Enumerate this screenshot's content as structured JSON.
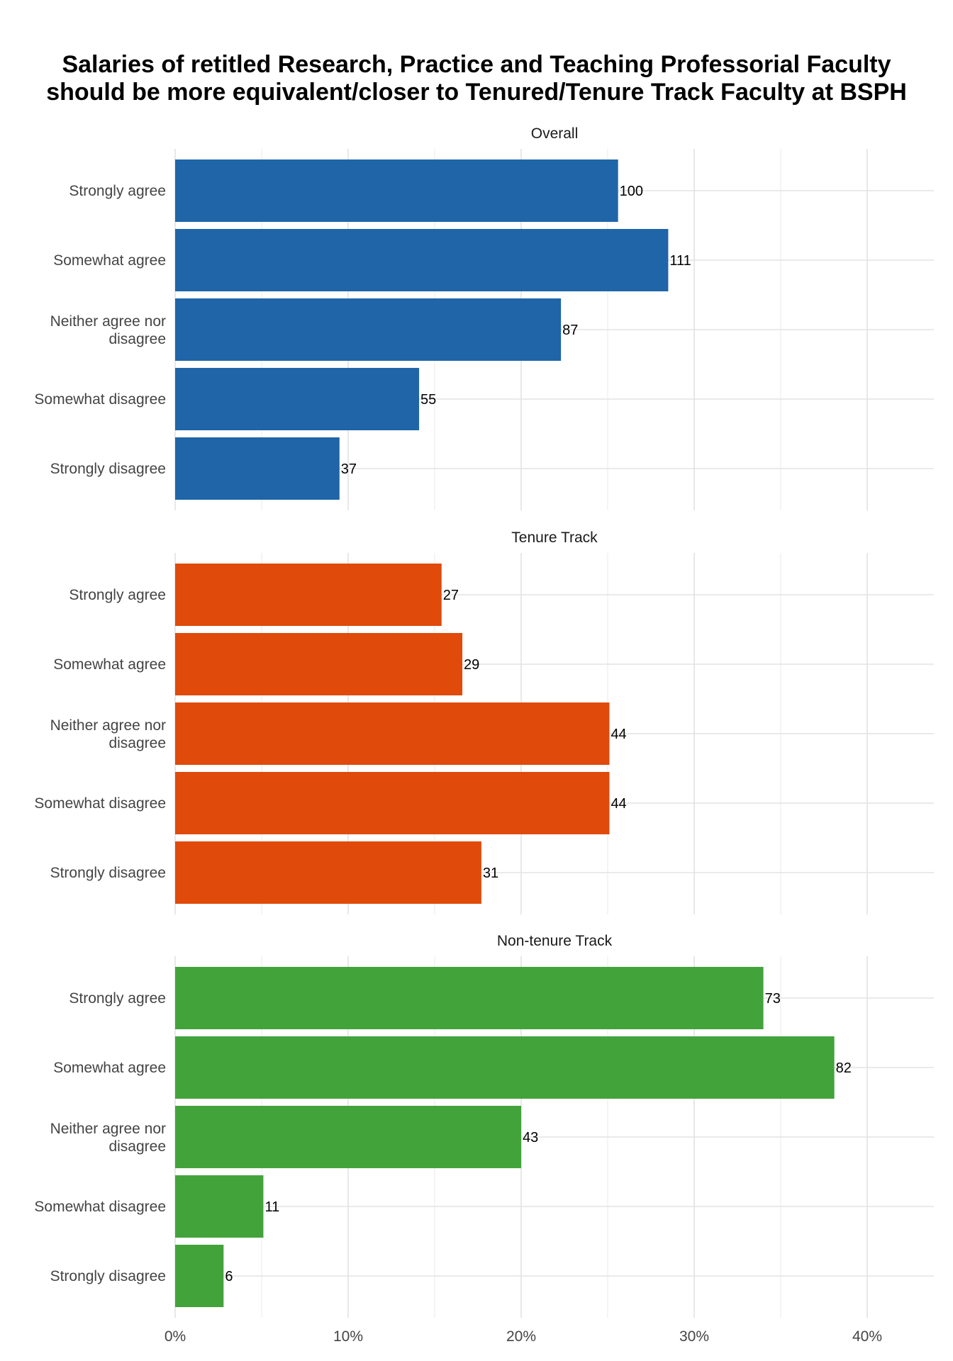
{
  "chart_data": {
    "type": "bar",
    "orientation": "horizontal",
    "title": [
      "Salaries of retitled Research, Practice and Teaching Professorial Faculty",
      "should be more equivalent/closer to Tenured/Tenure Track Faculty at BSPH"
    ],
    "categories": [
      "Strongly agree",
      "Somewhat agree",
      "Neither agree nor disagree",
      "Somewhat disagree",
      "Strongly disagree"
    ],
    "xlim": [
      0,
      0.44
    ],
    "x_ticks": [
      0,
      0.1,
      0.2,
      0.3,
      0.4
    ],
    "x_tick_labels": [
      "0%",
      "10%",
      "20%",
      "30%",
      "40%"
    ],
    "grid": true,
    "facets": [
      {
        "name": "Overall",
        "color": "#1F65A8",
        "counts": [
          100,
          111,
          87,
          55,
          37
        ],
        "percent": [
          0.256,
          0.285,
          0.223,
          0.141,
          0.095
        ]
      },
      {
        "name": "Tenure Track",
        "color": "#E04A0A",
        "counts": [
          27,
          29,
          44,
          44,
          31
        ],
        "percent": [
          0.154,
          0.166,
          0.251,
          0.251,
          0.177
        ]
      },
      {
        "name": "Non-tenure Track",
        "color": "#43A33B",
        "counts": [
          73,
          82,
          43,
          11,
          6
        ],
        "percent": [
          0.34,
          0.381,
          0.2,
          0.051,
          0.028
        ]
      }
    ]
  }
}
